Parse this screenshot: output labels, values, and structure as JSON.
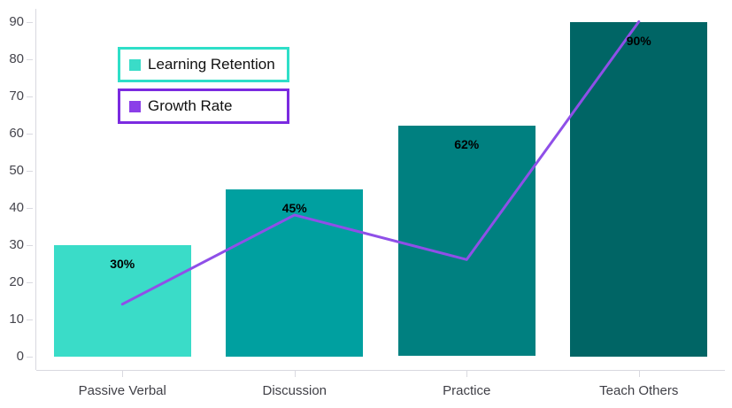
{
  "chart": {
    "legend": {
      "items": [
        {
          "label": "Learning Retention",
          "swatch_color": "#3adcc8",
          "border_color": "#2edfc8"
        },
        {
          "label": "Growth Rate",
          "swatch_color": "#8b3fe8",
          "border_color": "#7b2be0"
        }
      ]
    }
  },
  "chart_data": {
    "type": "bar",
    "categories": [
      "Passive Verbal",
      "Discussion",
      "Practice",
      "Teach Others"
    ],
    "series": [
      {
        "name": "Learning Retention",
        "type": "bar",
        "values": [
          30,
          45,
          62,
          90
        ],
        "data_labels": [
          "30%",
          "45%",
          "62%",
          "90%"
        ],
        "bar_colors": [
          "#3adcc8",
          "#00a0a0",
          "#008080",
          "#006565"
        ]
      },
      {
        "name": "Growth Rate",
        "type": "line",
        "values": [
          14,
          38,
          26,
          90
        ],
        "color": "#8f4fe8"
      }
    ],
    "ylim": [
      0,
      90
    ],
    "yticks": [
      0,
      10,
      20,
      30,
      40,
      50,
      60,
      70,
      80,
      90
    ],
    "grid": false,
    "legend_position": "top-left",
    "axis_color": "#d9d9e0",
    "tick_label_color": "#45454d",
    "data_label_color": "#000000"
  }
}
